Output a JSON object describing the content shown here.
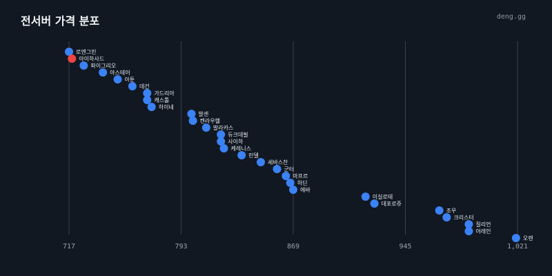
{
  "header": {
    "title": "전서버 가격 분포",
    "brand": "deng.gg"
  },
  "colors": {
    "background": "#121821",
    "gridline": "#3a414c",
    "point_default": "#3b82f6",
    "point_highlight": "#ef4444",
    "label_text": "#e6e9ee",
    "tick_text": "#9aa3ae"
  },
  "chart_data": {
    "type": "scatter",
    "title": "전서버 가격 분포",
    "xlabel": "",
    "ylabel": "",
    "xlim": [
      717,
      1021
    ],
    "x_ticks": [
      717,
      793,
      869,
      945,
      1021
    ],
    "x_tick_labels": [
      "717",
      "793",
      "869",
      "945",
      "1,021"
    ],
    "grid": true,
    "legend": "none",
    "points": [
      {
        "name": "로엔그린",
        "value": 717,
        "highlight": false
      },
      {
        "name": "아이하사드",
        "value": 719,
        "highlight": true
      },
      {
        "name": "파이그리오",
        "value": 727,
        "highlight": false
      },
      {
        "name": "아스테어",
        "value": 740,
        "highlight": false
      },
      {
        "name": "아툰",
        "value": 750,
        "highlight": false
      },
      {
        "name": "데건",
        "value": 760,
        "highlight": false
      },
      {
        "name": "가드리아",
        "value": 770,
        "highlight": false
      },
      {
        "name": "캐스톨",
        "value": 770,
        "highlight": false
      },
      {
        "name": "하이네",
        "value": 773,
        "highlight": false
      },
      {
        "name": "발센",
        "value": 800,
        "highlight": false
      },
      {
        "name": "켄라우헬",
        "value": 801,
        "highlight": false
      },
      {
        "name": "발라카스",
        "value": 810,
        "highlight": false
      },
      {
        "name": "듀크데필",
        "value": 820,
        "highlight": false
      },
      {
        "name": "사이하",
        "value": 820,
        "highlight": false
      },
      {
        "name": "케레니스",
        "value": 822,
        "highlight": false
      },
      {
        "name": "린델",
        "value": 834,
        "highlight": false
      },
      {
        "name": "세바스찬",
        "value": 847,
        "highlight": false
      },
      {
        "name": "군터",
        "value": 858,
        "highlight": false
      },
      {
        "name": "마프르",
        "value": 864,
        "highlight": false
      },
      {
        "name": "하딘",
        "value": 867,
        "highlight": false
      },
      {
        "name": "에바",
        "value": 869,
        "highlight": false
      },
      {
        "name": "이실로테",
        "value": 918,
        "highlight": false
      },
      {
        "name": "데포로쥬",
        "value": 924,
        "highlight": false
      },
      {
        "name": "조우",
        "value": 968,
        "highlight": false
      },
      {
        "name": "크리스터",
        "value": 973,
        "highlight": false
      },
      {
        "name": "질리언",
        "value": 988,
        "highlight": false
      },
      {
        "name": "어레인",
        "value": 988,
        "highlight": false
      },
      {
        "name": "오렌",
        "value": 1020,
        "highlight": false
      }
    ]
  }
}
